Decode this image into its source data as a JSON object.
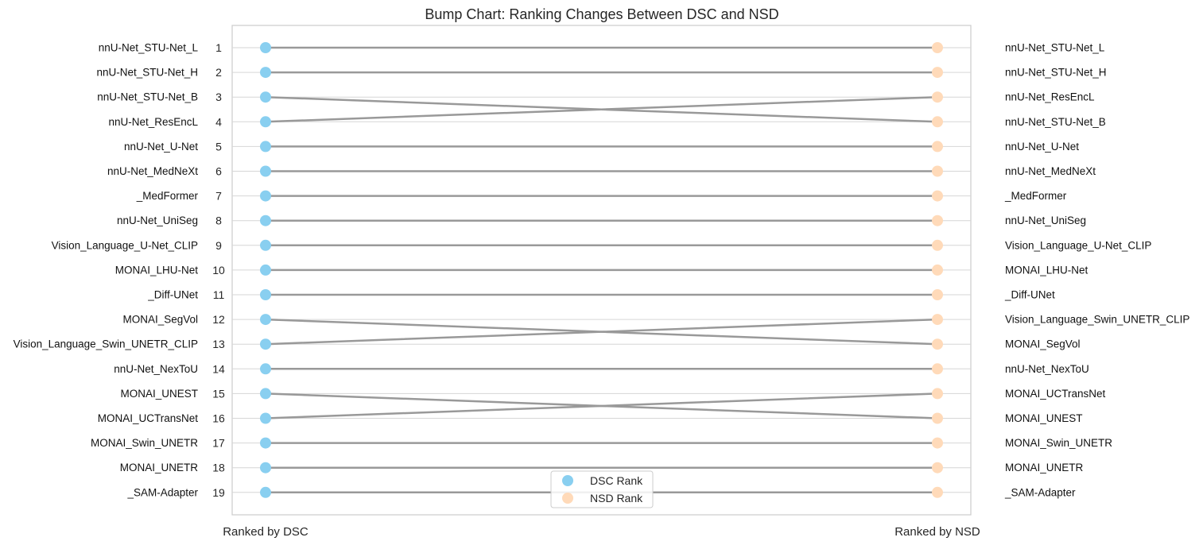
{
  "chart_data": {
    "type": "bump",
    "title": "Bump Chart: Ranking Changes Between DSC and NSD",
    "x_categories": [
      "Ranked by DSC",
      "Ranked by NSD"
    ],
    "rank_range": [
      1,
      19
    ],
    "y_inverted": true,
    "grid": "horizontal",
    "legend_position": "bottom-center",
    "series": [
      {
        "name": "DSC Rank",
        "color": "#89cff0"
      },
      {
        "name": "NSD Rank",
        "color": "#ffdab9"
      }
    ],
    "line_color": "#999999",
    "dsc_ranking": [
      "nnU-Net_STU-Net_L",
      "nnU-Net_STU-Net_H",
      "nnU-Net_STU-Net_B",
      "nnU-Net_ResEncL",
      "nnU-Net_U-Net",
      "nnU-Net_MedNeXt",
      "_MedFormer",
      "nnU-Net_UniSeg",
      "Vision_Language_U-Net_CLIP",
      "MONAI_LHU-Net",
      "_Diff-UNet",
      "MONAI_SegVol",
      "Vision_Language_Swin_UNETR_CLIP",
      "nnU-Net_NexToU",
      "MONAI_UNEST",
      "MONAI_UCTransNet",
      "MONAI_Swin_UNETR",
      "MONAI_UNETR",
      "_SAM-Adapter"
    ],
    "nsd_ranking": [
      "nnU-Net_STU-Net_L",
      "nnU-Net_STU-Net_H",
      "nnU-Net_ResEncL",
      "nnU-Net_STU-Net_B",
      "nnU-Net_U-Net",
      "nnU-Net_MedNeXt",
      "_MedFormer",
      "nnU-Net_UniSeg",
      "Vision_Language_U-Net_CLIP",
      "MONAI_LHU-Net",
      "_Diff-UNet",
      "Vision_Language_Swin_UNETR_CLIP",
      "MONAI_SegVol",
      "nnU-Net_NexToU",
      "MONAI_UCTransNet",
      "MONAI_UNEST",
      "MONAI_Swin_UNETR",
      "MONAI_UNETR",
      "_SAM-Adapter"
    ]
  }
}
